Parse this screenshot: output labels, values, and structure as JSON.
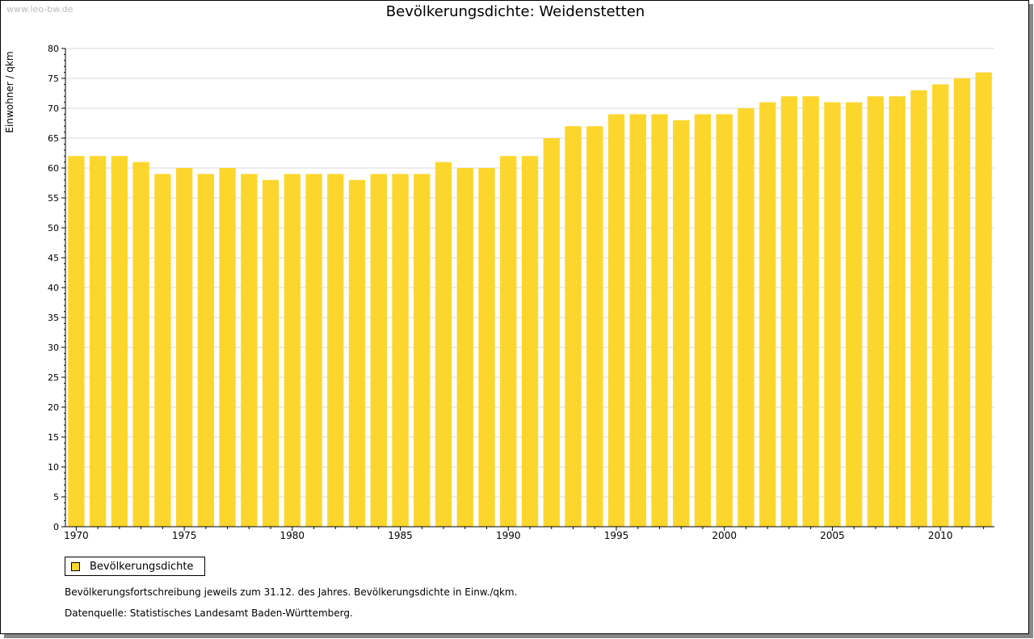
{
  "watermark": "www.leo-bw.de",
  "title": "Bevölkerungsdichte: Weidenstetten",
  "ylabel": "Einwohner / qkm",
  "legend_label": "Bevölkerungsdichte",
  "note1": "Bevölkerungsfortschreibung jeweils zum 31.12. des Jahres. Bevölkerungsdichte in Einw./qkm.",
  "note2": "Datenquelle: Statistisches Landesamt Baden-Württemberg.",
  "colors": {
    "bar": "#FCD62C",
    "grid": "#d9d9d9",
    "axis": "#000000"
  },
  "chart_data": {
    "type": "bar",
    "title": "Bevölkerungsdichte: Weidenstetten",
    "xlabel": "",
    "ylabel": "Einwohner / qkm",
    "ylim": [
      0,
      80
    ],
    "yticks": [
      0,
      5,
      10,
      15,
      20,
      25,
      30,
      35,
      40,
      45,
      50,
      55,
      60,
      65,
      70,
      75,
      80
    ],
    "xtick_labels": [
      "1970",
      "1975",
      "1980",
      "1985",
      "1990",
      "1995",
      "2000",
      "2005",
      "2010"
    ],
    "grid": true,
    "legend_position": "bottom-left",
    "categories": [
      1970,
      1971,
      1972,
      1973,
      1974,
      1975,
      1976,
      1977,
      1978,
      1979,
      1980,
      1981,
      1982,
      1983,
      1984,
      1985,
      1986,
      1987,
      1988,
      1989,
      1990,
      1991,
      1992,
      1993,
      1994,
      1995,
      1996,
      1997,
      1998,
      1999,
      2000,
      2001,
      2002,
      2003,
      2004,
      2005,
      2006,
      2007,
      2008,
      2009,
      2010,
      2011,
      2012
    ],
    "series": [
      {
        "name": "Bevölkerungsdichte",
        "values": [
          62,
          62,
          62,
          61,
          59,
          60,
          59,
          60,
          59,
          58,
          59,
          59,
          59,
          58,
          59,
          59,
          59,
          61,
          60,
          60,
          62,
          62,
          65,
          67,
          67,
          69,
          69,
          69,
          68,
          69,
          69,
          70,
          71,
          72,
          72,
          71,
          71,
          72,
          72,
          73,
          74,
          75,
          76
        ]
      }
    ]
  }
}
